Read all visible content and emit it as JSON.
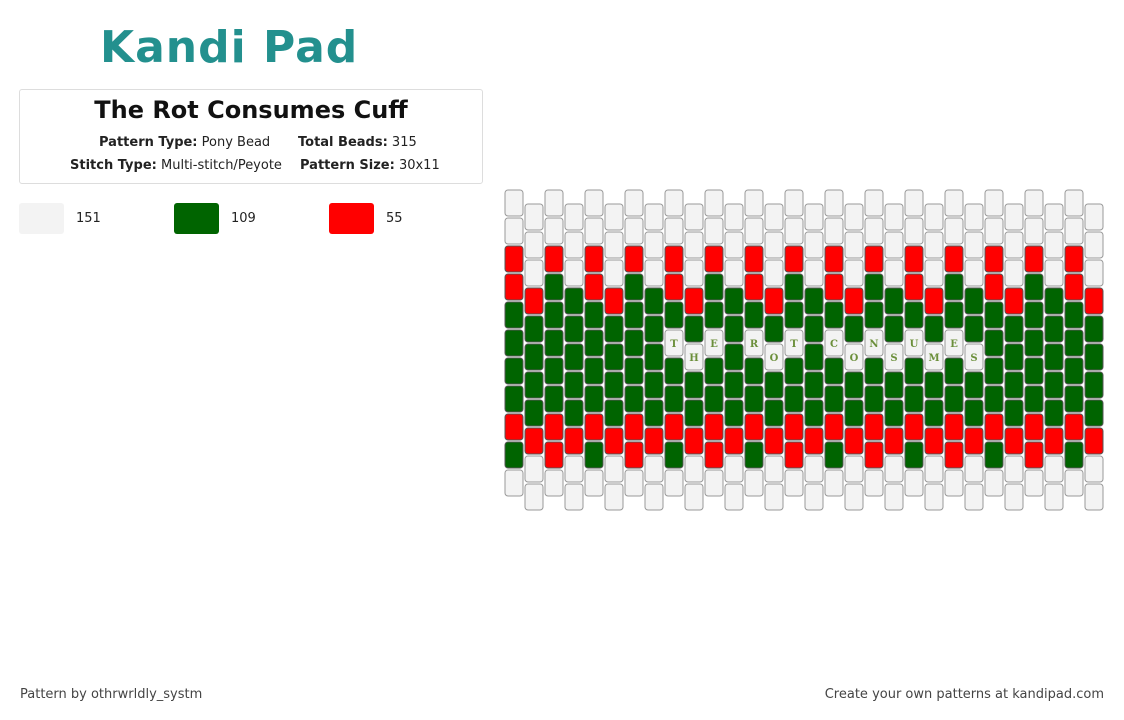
{
  "header": {
    "logo": "Kandi Pad",
    "title": "The Rot Consumes Cuff",
    "pattern_type_label": "Pattern Type:",
    "pattern_type": "Pony Bead",
    "total_beads_label": "Total Beads:",
    "total_beads": "315",
    "stitch_type_label": "Stitch Type:",
    "stitch_type": "Multi-stitch/Peyote",
    "pattern_size_label": "Pattern Size:",
    "pattern_size": "30x11"
  },
  "legend": [
    {
      "color": "#f3f3f3",
      "count": "151"
    },
    {
      "color": "#006400",
      "count": "109"
    },
    {
      "color": "#ff0000",
      "count": "55"
    }
  ],
  "bead_letters": [
    "T",
    "H",
    "E",
    "R",
    "O",
    "T",
    "C",
    "O",
    "N",
    "S",
    "U",
    "M",
    "E",
    "S"
  ],
  "footer": {
    "left": "Pattern by othrwrldly_systm",
    "right": "Create your own patterns at kandipad.com"
  }
}
